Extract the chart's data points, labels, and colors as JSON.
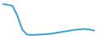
{
  "values": [
    10000,
    9800,
    9500,
    7000,
    3500,
    2200,
    2100,
    2150,
    2200,
    2300,
    2400,
    2600,
    2800,
    3000,
    3200,
    3400,
    3500,
    3600,
    3500,
    3200
  ],
  "line_color": "#3c9fd4",
  "background_color": "#ffffff",
  "linewidth": 1.5
}
